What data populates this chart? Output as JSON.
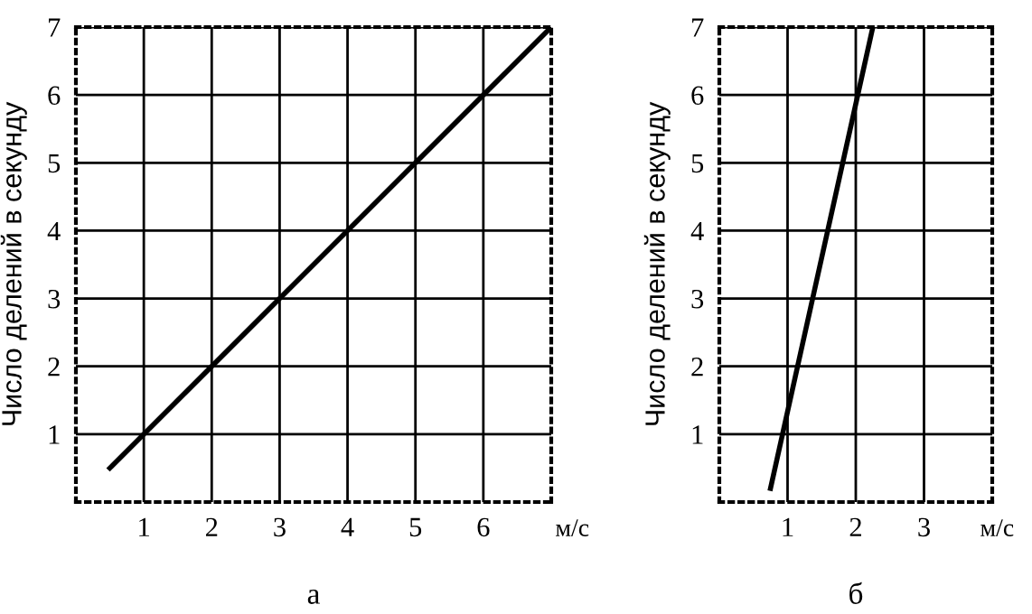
{
  "chart_data": [
    {
      "type": "line",
      "title": "а",
      "xlabel": "м/с",
      "ylabel": "Число делений в секунду",
      "x": [
        0.5,
        7
      ],
      "values": [
        0.5,
        7
      ],
      "color": "#000000",
      "xlim": [
        0,
        7
      ],
      "ylim": [
        0,
        7
      ],
      "xticks": [
        1,
        2,
        3,
        4,
        5,
        6
      ],
      "yticks": [
        1,
        2,
        3,
        4,
        5,
        6,
        7
      ],
      "grid": true,
      "line_style": "solid",
      "marker": "none"
    },
    {
      "type": "line",
      "title": "б",
      "xlabel": "м/с",
      "ylabel": "Число делений в секунду",
      "x": [
        0.75,
        2.25
      ],
      "values": [
        0.2,
        7
      ],
      "color": "#000000",
      "xlim": [
        0,
        4
      ],
      "ylim": [
        0,
        7
      ],
      "xticks": [
        1,
        2,
        3
      ],
      "yticks": [
        1,
        2,
        3,
        4,
        5,
        6,
        7
      ],
      "grid": true,
      "line_style": "solid",
      "marker": "none"
    }
  ]
}
